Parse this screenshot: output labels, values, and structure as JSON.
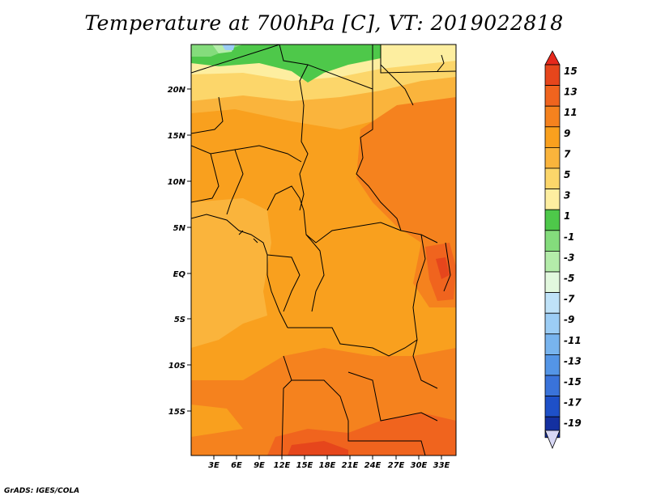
{
  "title": "Temperature at 700hPa [C], VT: 2019022818",
  "credit": "GrADS: IGES/COLA",
  "map": {
    "lat_ticks": [
      "20N",
      "15N",
      "10N",
      "5N",
      "EQ",
      "5S",
      "10S",
      "15S"
    ],
    "lon_ticks": [
      "3E",
      "6E",
      "9E",
      "12E",
      "15E",
      "18E",
      "21E",
      "24E",
      "27E",
      "30E",
      "33E"
    ]
  },
  "colorbar": {
    "labels": [
      "15",
      "13",
      "11",
      "9",
      "7",
      "5",
      "3",
      "1",
      "-1",
      "-3",
      "-5",
      "-7",
      "-9",
      "-11",
      "-13",
      "-15",
      "-17",
      "-19"
    ],
    "colors": [
      "#e6461c",
      "#f0641e",
      "#f5821e",
      "#f9a01e",
      "#fab43c",
      "#fcd66a",
      "#fdeea0",
      "#4ec84a",
      "#84dc7c",
      "#b4ecaa",
      "#e2f8de",
      "#bfe2f8",
      "#9ccdf5",
      "#78b4ee",
      "#5495e6",
      "#3a73da",
      "#1e50c8",
      "#1430a0"
    ],
    "top_arrow_color": "#e6281c",
    "bottom_arrow_color": "#d8d8f5",
    "bottom_end_color": "#0a1478"
  }
}
